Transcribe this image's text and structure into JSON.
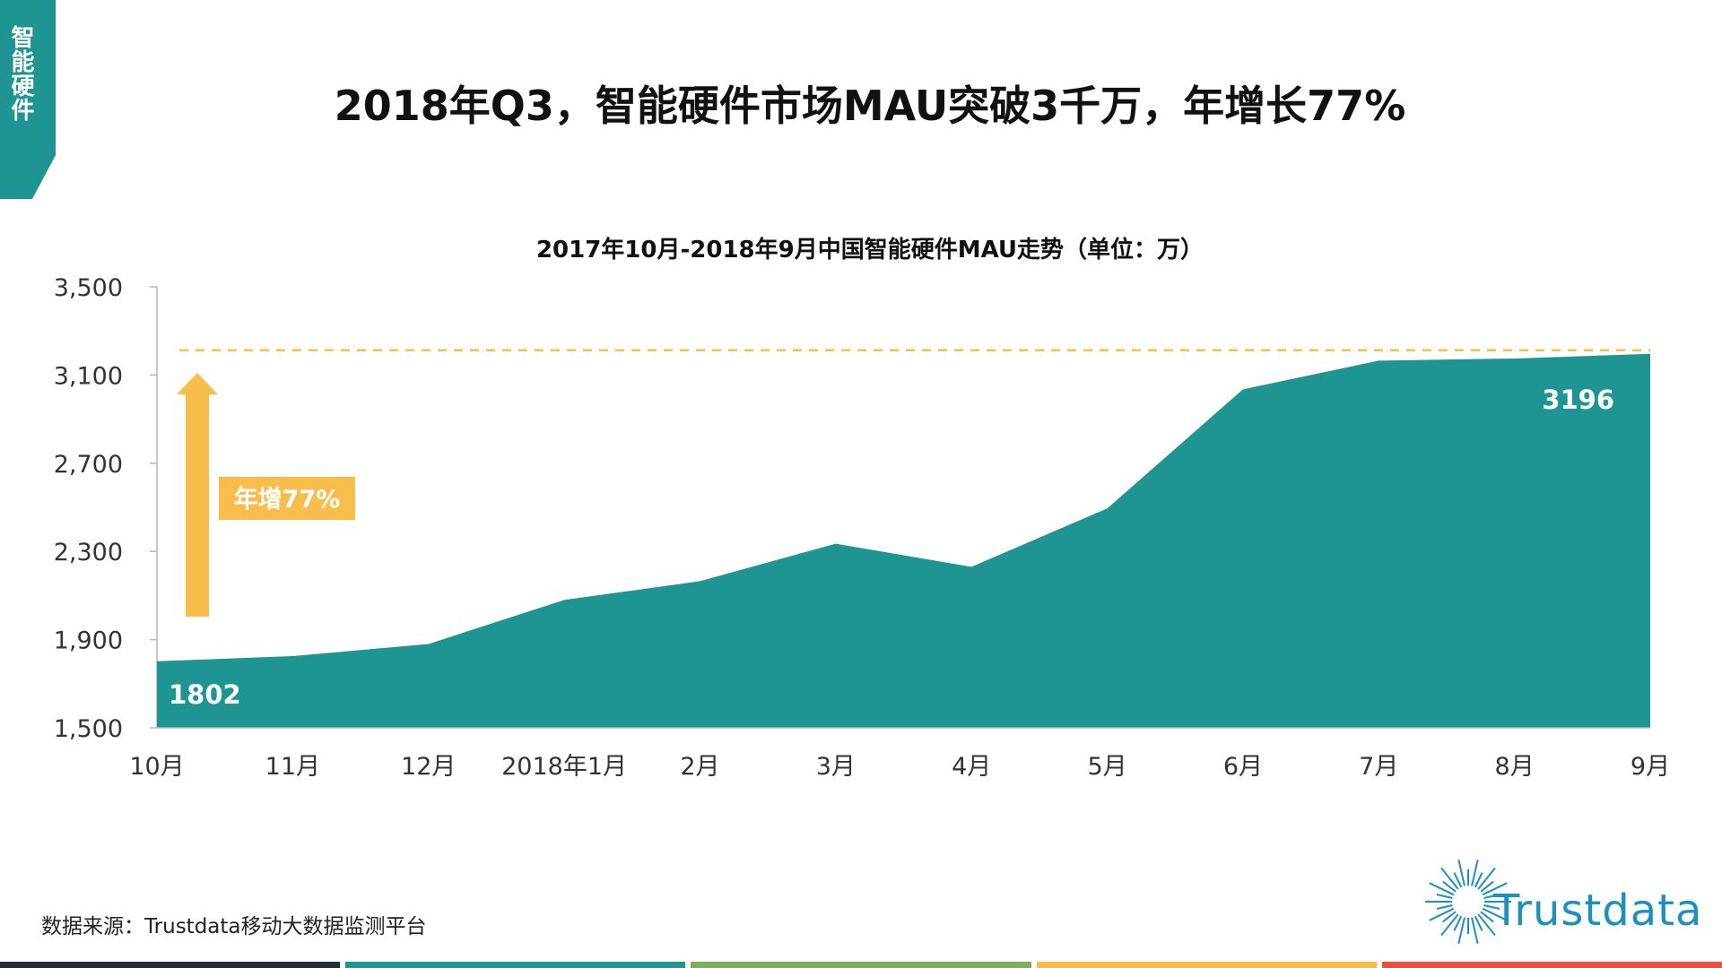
{
  "side_tab": {
    "label": "智能硬件"
  },
  "main_title": "2018年Q3，智能硬件市场MAU突破3千万，年增长77%",
  "chart_data": {
    "type": "area",
    "title": "2017年10月-2018年9月中国智能硬件MAU走势（单位：万）",
    "categories": [
      "10月",
      "11月",
      "12月",
      "2018年1月",
      "2月",
      "3月",
      "4月",
      "5月",
      "6月",
      "7月",
      "8月",
      "9月"
    ],
    "values": [
      1802,
      1825,
      1880,
      2080,
      2165,
      2335,
      2230,
      2495,
      3035,
      3165,
      3175,
      3196
    ],
    "ylim": [
      1500,
      3500
    ],
    "yticks": [
      1500,
      1900,
      2300,
      2700,
      3100,
      3500
    ],
    "ytick_labels": [
      "1,500",
      "1,900",
      "2,300",
      "2,700",
      "3,100",
      "3,500"
    ],
    "grid": false,
    "labels": {
      "first": "1802",
      "last": "3196"
    },
    "reference_line": 3196,
    "annotation": "年增77%",
    "colors": {
      "area": "#1e9592",
      "arrow": "#f9bd4c",
      "dashed": "#f9bd4c"
    }
  },
  "source": "数据来源：Trustdata移动大数据监测平台",
  "logo": {
    "text": "Trustdata",
    "color": "#1d8fc0"
  },
  "footer_colors": [
    "#1f2d3d",
    "#1e9592",
    "#7ab157",
    "#f9bd4c",
    "#e8503a"
  ]
}
